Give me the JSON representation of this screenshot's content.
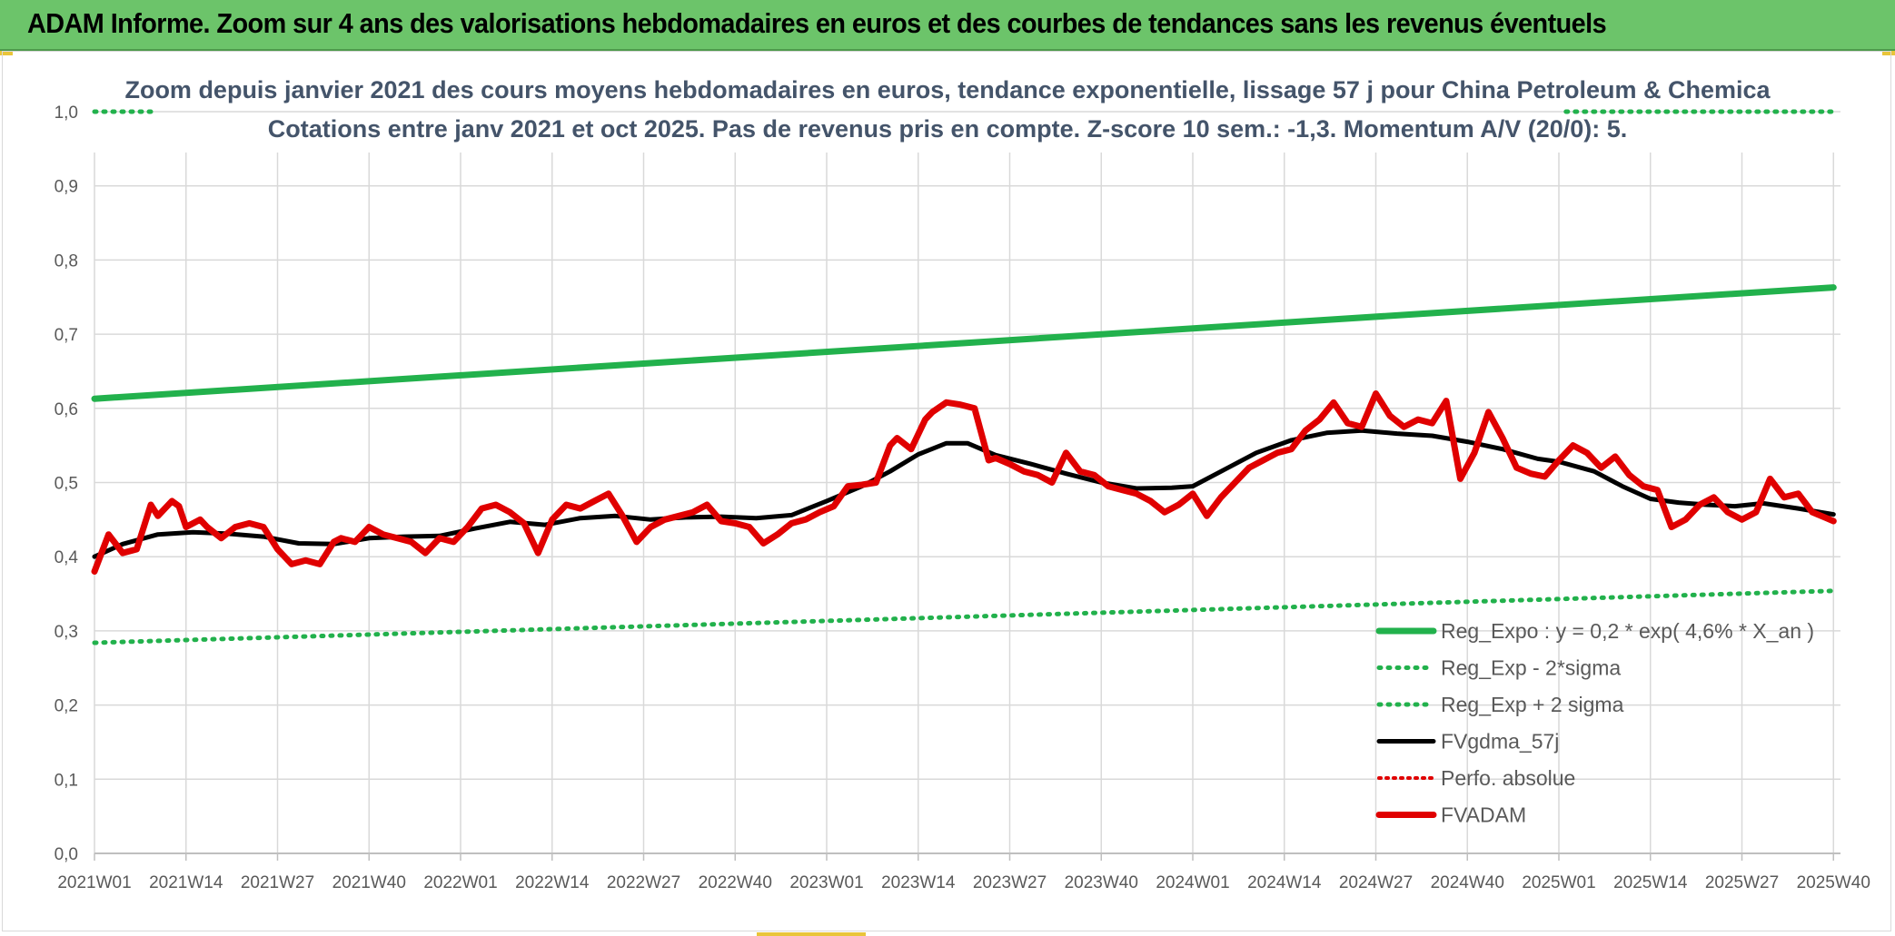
{
  "header": {
    "title": "ADAM Informe. Zoom sur 4 ans des valorisations hebdomadaires en euros et des courbes de tendances sans les revenus éventuels"
  },
  "colors": {
    "regression": "#22b14c",
    "band": "#22b14c",
    "smooth": "#000000",
    "perfo": "#e00000",
    "fvadam": "#e00000",
    "grid": "#d9d9d9",
    "banner": "#6cc46a"
  },
  "chart_data": {
    "type": "line",
    "title": "Zoom depuis janvier 2021 des cours moyens hebdomadaires en euros, tendance exponentielle, lissage 57 j pour China Petroleum & Chemica",
    "subtitle": "Cotations entre janv 2021 et oct 2025. Pas de revenus pris en compte. Z-score 10 sem.: -1,3. Momentum A/V (20/0): 5.",
    "xlabel": "",
    "ylabel": "",
    "ylim": [
      0.0,
      1.0
    ],
    "yticks": [
      "0,0",
      "0,1",
      "0,2",
      "0,3",
      "0,4",
      "0,5",
      "0,6",
      "0,7",
      "0,8",
      "0,9",
      "1,0"
    ],
    "x_tick_labels": [
      "2021W01",
      "2021W14",
      "2021W27",
      "2021W40",
      "2022W01",
      "2022W14",
      "2022W27",
      "2022W40",
      "2023W01",
      "2023W14",
      "2023W27",
      "2023W40",
      "2024W01",
      "2024W14",
      "2024W27",
      "2024W40",
      "2025W01",
      "2025W14",
      "2025W27",
      "2025W40"
    ],
    "grid": true,
    "legend_position": "bottom-right",
    "series": [
      {
        "name": "Reg_Expo : y = 0,2 * exp( 4,6% *  X_an )",
        "style": "solid-thick",
        "x": [
          "2021W01",
          "2025W40"
        ],
        "values": [
          0.613,
          0.763
        ]
      },
      {
        "name": "Reg_Exp - 2*sigma",
        "style": "dotted",
        "x": [
          "2021W01",
          "2025W40"
        ],
        "values": [
          0.284,
          0.354
        ]
      },
      {
        "name": "Reg_Exp + 2 sigma",
        "style": "dotted",
        "x": [
          "2021W01",
          "2021W09",
          "2025W02",
          "2025W40"
        ],
        "values": [
          1.0,
          1.0,
          1.0,
          1.0
        ],
        "note_segments": [
          [
            "2021W01",
            "2021W09"
          ],
          [
            "2025W02",
            "2025W40"
          ]
        ]
      },
      {
        "name": "FVgdma_57j",
        "style": "solid",
        "x": [
          "2021W01",
          "2021W05",
          "2021W10",
          "2021W15",
          "2021W20",
          "2021W25",
          "2021W30",
          "2021W35",
          "2021W40",
          "2021W45",
          "2021W50",
          "2022W03",
          "2022W08",
          "2022W13",
          "2022W18",
          "2022W23",
          "2022W28",
          "2022W33",
          "2022W38",
          "2022W43",
          "2022W48",
          "2023W01",
          "2023W06",
          "2023W10",
          "2023W14",
          "2023W18",
          "2023W21",
          "2023W25",
          "2023W30",
          "2023W35",
          "2023W40",
          "2023W45",
          "2023W50",
          "2024W01",
          "2024W06",
          "2024W10",
          "2024W15",
          "2024W20",
          "2024W25",
          "2024W30",
          "2024W35",
          "2024W40",
          "2024W45",
          "2024W50",
          "2025W01",
          "2025W06",
          "2025W10",
          "2025W14",
          "2025W18",
          "2025W22",
          "2025W26",
          "2025W30",
          "2025W35",
          "2025W40"
        ],
        "values": [
          0.4,
          0.417,
          0.43,
          0.433,
          0.431,
          0.427,
          0.418,
          0.417,
          0.425,
          0.427,
          0.428,
          0.438,
          0.447,
          0.443,
          0.452,
          0.455,
          0.45,
          0.453,
          0.454,
          0.452,
          0.456,
          0.475,
          0.495,
          0.515,
          0.538,
          0.553,
          0.553,
          0.537,
          0.525,
          0.512,
          0.5,
          0.492,
          0.493,
          0.495,
          0.52,
          0.54,
          0.557,
          0.567,
          0.57,
          0.566,
          0.563,
          0.555,
          0.545,
          0.532,
          0.528,
          0.515,
          0.495,
          0.478,
          0.473,
          0.47,
          0.468,
          0.472,
          0.465,
          0.457
        ]
      },
      {
        "name": "Perfo. absolue",
        "style": "dotted",
        "x": [],
        "values": []
      },
      {
        "name": "FVADAM",
        "style": "solid-thick",
        "x": [
          "2021W01",
          "2021W03",
          "2021W05",
          "2021W07",
          "2021W09",
          "2021W10",
          "2021W12",
          "2021W13",
          "2021W14",
          "2021W16",
          "2021W17",
          "2021W19",
          "2021W21",
          "2021W23",
          "2021W25",
          "2021W27",
          "2021W29",
          "2021W31",
          "2021W33",
          "2021W35",
          "2021W36",
          "2021W38",
          "2021W40",
          "2021W42",
          "2021W44",
          "2021W46",
          "2021W48",
          "2021W50",
          "2021W52",
          "2022W02",
          "2022W04",
          "2022W06",
          "2022W08",
          "2022W10",
          "2022W12",
          "2022W14",
          "2022W16",
          "2022W18",
          "2022W20",
          "2022W22",
          "2022W24",
          "2022W26",
          "2022W28",
          "2022W30",
          "2022W32",
          "2022W34",
          "2022W36",
          "2022W38",
          "2022W40",
          "2022W42",
          "2022W44",
          "2022W46",
          "2022W48",
          "2022W50",
          "2022W52",
          "2023W02",
          "2023W04",
          "2023W06",
          "2023W08",
          "2023W10",
          "2023W11",
          "2023W13",
          "2023W15",
          "2023W16",
          "2023W18",
          "2023W20",
          "2023W22",
          "2023W24",
          "2023W25",
          "2023W27",
          "2023W29",
          "2023W31",
          "2023W33",
          "2023W35",
          "2023W37",
          "2023W39",
          "2023W41",
          "2023W43",
          "2023W45",
          "2023W47",
          "2023W49",
          "2023W51",
          "2024W01",
          "2024W03",
          "2024W05",
          "2024W07",
          "2024W09",
          "2024W11",
          "2024W13",
          "2024W15",
          "2024W17",
          "2024W19",
          "2024W21",
          "2024W23",
          "2024W25",
          "2024W27",
          "2024W29",
          "2024W31",
          "2024W33",
          "2024W35",
          "2024W37",
          "2024W39",
          "2024W41",
          "2024W43",
          "2024W45",
          "2024W47",
          "2024W49",
          "2024W51",
          "2025W01",
          "2025W03",
          "2025W05",
          "2025W07",
          "2025W09",
          "2025W11",
          "2025W13",
          "2025W15",
          "2025W17",
          "2025W19",
          "2025W21",
          "2025W23",
          "2025W25",
          "2025W27",
          "2025W29",
          "2025W31",
          "2025W33",
          "2025W35",
          "2025W37",
          "2025W39",
          "2025W40"
        ],
        "values": [
          0.38,
          0.43,
          0.405,
          0.41,
          0.47,
          0.455,
          0.475,
          0.468,
          0.44,
          0.45,
          0.44,
          0.425,
          0.44,
          0.445,
          0.44,
          0.41,
          0.39,
          0.395,
          0.39,
          0.42,
          0.425,
          0.42,
          0.44,
          0.43,
          0.425,
          0.42,
          0.405,
          0.425,
          0.42,
          0.44,
          0.465,
          0.47,
          0.46,
          0.445,
          0.405,
          0.45,
          0.47,
          0.465,
          0.475,
          0.485,
          0.455,
          0.42,
          0.44,
          0.45,
          0.455,
          0.46,
          0.47,
          0.448,
          0.445,
          0.44,
          0.418,
          0.43,
          0.445,
          0.45,
          0.46,
          0.468,
          0.495,
          0.497,
          0.5,
          0.55,
          0.56,
          0.545,
          0.585,
          0.595,
          0.608,
          0.605,
          0.6,
          0.53,
          0.533,
          0.525,
          0.515,
          0.51,
          0.5,
          0.54,
          0.515,
          0.51,
          0.495,
          0.49,
          0.485,
          0.475,
          0.46,
          0.47,
          0.485,
          0.455,
          0.48,
          0.5,
          0.52,
          0.53,
          0.54,
          0.545,
          0.57,
          0.585,
          0.608,
          0.58,
          0.575,
          0.62,
          0.59,
          0.575,
          0.585,
          0.58,
          0.61,
          0.505,
          0.54,
          0.595,
          0.56,
          0.52,
          0.512,
          0.508,
          0.53,
          0.55,
          0.54,
          0.52,
          0.535,
          0.51,
          0.495,
          0.49,
          0.44,
          0.45,
          0.47,
          0.48,
          0.46,
          0.45,
          0.46,
          0.505,
          0.48,
          0.485,
          0.46,
          0.452,
          0.448
        ]
      }
    ]
  }
}
